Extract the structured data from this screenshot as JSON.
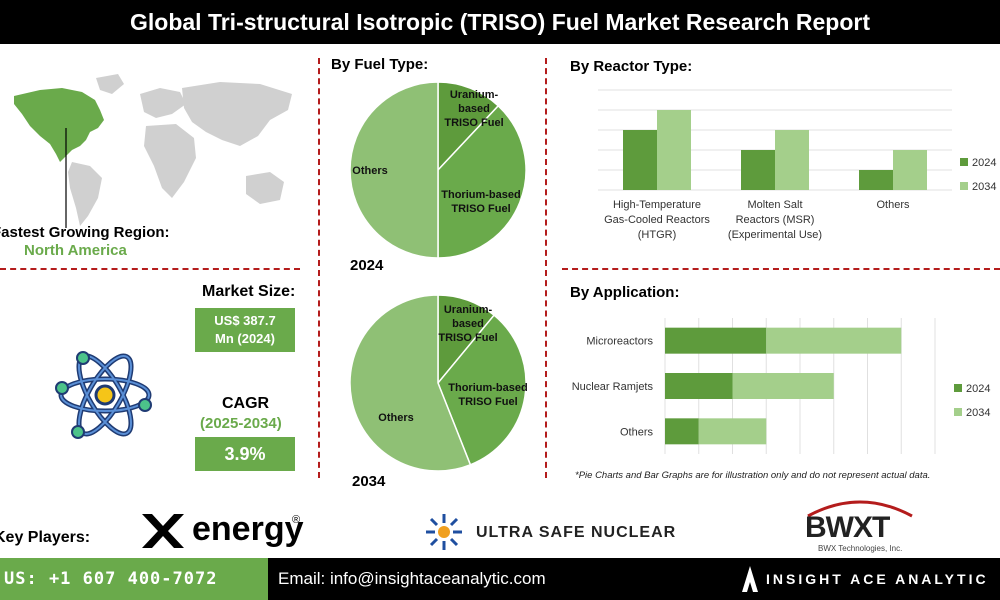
{
  "header": {
    "title": "Global Tri-structural Isotropic (TRISO) Fuel Market Research Report"
  },
  "region": {
    "label": "Fastest Growing Region:",
    "value": "North America"
  },
  "market_size": {
    "label": "Market Size:",
    "value_line1": "US$ 387.7",
    "value_line2": "Mn (2024)"
  },
  "cagr": {
    "label": "CAGR",
    "period": "(2025-2034)",
    "value": "3.9%"
  },
  "sections": {
    "fuel_type": "By Fuel Type:",
    "reactor_type": "By  Reactor Type:",
    "application": "By Application:"
  },
  "disclaimer": "*Pie Charts and Bar Graphs are for illustration only and do not represent actual data.",
  "key_players": {
    "label": "Key Players:",
    "players": [
      "energy",
      "ULTRA SAFE NUCLEAR",
      "BWXT",
      "BWX Technologies, Inc."
    ]
  },
  "footer": {
    "phone": "US: +1 607 400-7072",
    "email": "Email: info@insightaceanalytic.com",
    "brand": "INSIGHT ACE ANALYTIC"
  },
  "colors": {
    "dark_green": "#5e9b3c",
    "mid_green": "#6aaa4b",
    "light_green": "#a4cf8b",
    "pie_light": "#8fc075",
    "accent_red": "#b41c1c"
  },
  "chart_data": [
    {
      "type": "pie",
      "title": "2024",
      "slices": [
        {
          "label": "Uranium-based TRISO Fuel",
          "value": 12
        },
        {
          "label": "Thorium-based TRISO Fuel",
          "value": 38
        },
        {
          "label": "Others",
          "value": 50
        }
      ]
    },
    {
      "type": "pie",
      "title": "2034",
      "slices": [
        {
          "label": "Uranium-based TRISO Fuel",
          "value": 11
        },
        {
          "label": "Thorium-based TRISO Fuel",
          "value": 33
        },
        {
          "label": "Others",
          "value": 56
        }
      ]
    },
    {
      "type": "bar",
      "categories": [
        "High-Temperature Gas-Cooled Reactors (HTGR)",
        "Molten Salt Reactors (MSR) (Experimental Use)",
        "Others"
      ],
      "series": [
        {
          "name": "2024",
          "values": [
            3,
            2,
            1
          ]
        },
        {
          "name": "2034",
          "values": [
            4,
            3,
            2
          ]
        }
      ],
      "ylim": [
        0,
        5
      ],
      "legend": "right"
    },
    {
      "type": "bar",
      "orientation": "horizontal",
      "stacked": true,
      "categories": [
        "Microreactors",
        "Nuclear Ramjets",
        "Others"
      ],
      "series": [
        {
          "name": "2024",
          "values": [
            3,
            2,
            1
          ]
        },
        {
          "name": "2034",
          "values": [
            4,
            3,
            2
          ]
        }
      ],
      "xlim": [
        0,
        8
      ],
      "legend": "right"
    }
  ]
}
